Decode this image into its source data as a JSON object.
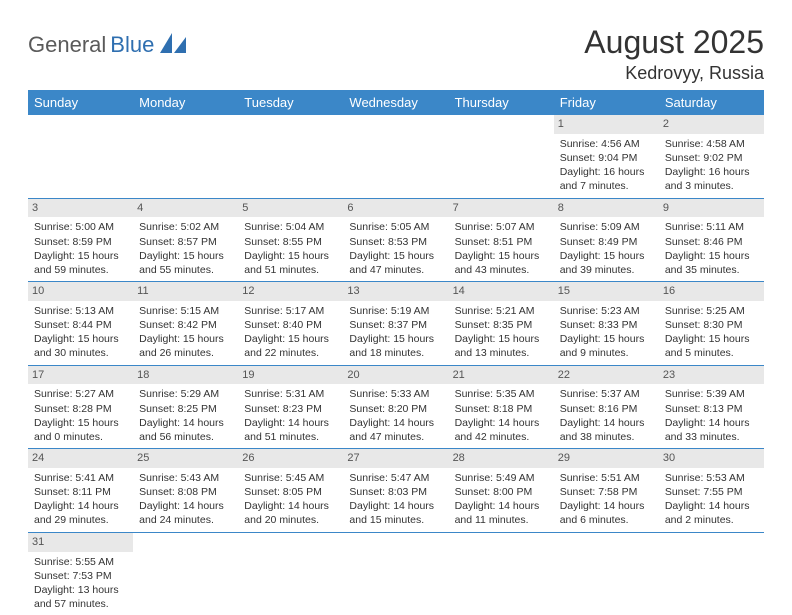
{
  "brand": {
    "part1": "General",
    "part2": "Blue"
  },
  "title": "August 2025",
  "location": "Kedrovyy, Russia",
  "colors": {
    "header_bg": "#3b87c8",
    "header_text": "#ffffff",
    "daynum_bg": "#e8e8e8",
    "row_border": "#3b87c8",
    "logo_accent": "#2f6fb0",
    "text": "#333333"
  },
  "day_headers": [
    "Sunday",
    "Monday",
    "Tuesday",
    "Wednesday",
    "Thursday",
    "Friday",
    "Saturday"
  ],
  "weeks": [
    [
      null,
      null,
      null,
      null,
      null,
      {
        "n": "1",
        "sr": "Sunrise: 4:56 AM",
        "ss": "Sunset: 9:04 PM",
        "dl": "Daylight: 16 hours and 7 minutes."
      },
      {
        "n": "2",
        "sr": "Sunrise: 4:58 AM",
        "ss": "Sunset: 9:02 PM",
        "dl": "Daylight: 16 hours and 3 minutes."
      }
    ],
    [
      {
        "n": "3",
        "sr": "Sunrise: 5:00 AM",
        "ss": "Sunset: 8:59 PM",
        "dl": "Daylight: 15 hours and 59 minutes."
      },
      {
        "n": "4",
        "sr": "Sunrise: 5:02 AM",
        "ss": "Sunset: 8:57 PM",
        "dl": "Daylight: 15 hours and 55 minutes."
      },
      {
        "n": "5",
        "sr": "Sunrise: 5:04 AM",
        "ss": "Sunset: 8:55 PM",
        "dl": "Daylight: 15 hours and 51 minutes."
      },
      {
        "n": "6",
        "sr": "Sunrise: 5:05 AM",
        "ss": "Sunset: 8:53 PM",
        "dl": "Daylight: 15 hours and 47 minutes."
      },
      {
        "n": "7",
        "sr": "Sunrise: 5:07 AM",
        "ss": "Sunset: 8:51 PM",
        "dl": "Daylight: 15 hours and 43 minutes."
      },
      {
        "n": "8",
        "sr": "Sunrise: 5:09 AM",
        "ss": "Sunset: 8:49 PM",
        "dl": "Daylight: 15 hours and 39 minutes."
      },
      {
        "n": "9",
        "sr": "Sunrise: 5:11 AM",
        "ss": "Sunset: 8:46 PM",
        "dl": "Daylight: 15 hours and 35 minutes."
      }
    ],
    [
      {
        "n": "10",
        "sr": "Sunrise: 5:13 AM",
        "ss": "Sunset: 8:44 PM",
        "dl": "Daylight: 15 hours and 30 minutes."
      },
      {
        "n": "11",
        "sr": "Sunrise: 5:15 AM",
        "ss": "Sunset: 8:42 PM",
        "dl": "Daylight: 15 hours and 26 minutes."
      },
      {
        "n": "12",
        "sr": "Sunrise: 5:17 AM",
        "ss": "Sunset: 8:40 PM",
        "dl": "Daylight: 15 hours and 22 minutes."
      },
      {
        "n": "13",
        "sr": "Sunrise: 5:19 AM",
        "ss": "Sunset: 8:37 PM",
        "dl": "Daylight: 15 hours and 18 minutes."
      },
      {
        "n": "14",
        "sr": "Sunrise: 5:21 AM",
        "ss": "Sunset: 8:35 PM",
        "dl": "Daylight: 15 hours and 13 minutes."
      },
      {
        "n": "15",
        "sr": "Sunrise: 5:23 AM",
        "ss": "Sunset: 8:33 PM",
        "dl": "Daylight: 15 hours and 9 minutes."
      },
      {
        "n": "16",
        "sr": "Sunrise: 5:25 AM",
        "ss": "Sunset: 8:30 PM",
        "dl": "Daylight: 15 hours and 5 minutes."
      }
    ],
    [
      {
        "n": "17",
        "sr": "Sunrise: 5:27 AM",
        "ss": "Sunset: 8:28 PM",
        "dl": "Daylight: 15 hours and 0 minutes."
      },
      {
        "n": "18",
        "sr": "Sunrise: 5:29 AM",
        "ss": "Sunset: 8:25 PM",
        "dl": "Daylight: 14 hours and 56 minutes."
      },
      {
        "n": "19",
        "sr": "Sunrise: 5:31 AM",
        "ss": "Sunset: 8:23 PM",
        "dl": "Daylight: 14 hours and 51 minutes."
      },
      {
        "n": "20",
        "sr": "Sunrise: 5:33 AM",
        "ss": "Sunset: 8:20 PM",
        "dl": "Daylight: 14 hours and 47 minutes."
      },
      {
        "n": "21",
        "sr": "Sunrise: 5:35 AM",
        "ss": "Sunset: 8:18 PM",
        "dl": "Daylight: 14 hours and 42 minutes."
      },
      {
        "n": "22",
        "sr": "Sunrise: 5:37 AM",
        "ss": "Sunset: 8:16 PM",
        "dl": "Daylight: 14 hours and 38 minutes."
      },
      {
        "n": "23",
        "sr": "Sunrise: 5:39 AM",
        "ss": "Sunset: 8:13 PM",
        "dl": "Daylight: 14 hours and 33 minutes."
      }
    ],
    [
      {
        "n": "24",
        "sr": "Sunrise: 5:41 AM",
        "ss": "Sunset: 8:11 PM",
        "dl": "Daylight: 14 hours and 29 minutes."
      },
      {
        "n": "25",
        "sr": "Sunrise: 5:43 AM",
        "ss": "Sunset: 8:08 PM",
        "dl": "Daylight: 14 hours and 24 minutes."
      },
      {
        "n": "26",
        "sr": "Sunrise: 5:45 AM",
        "ss": "Sunset: 8:05 PM",
        "dl": "Daylight: 14 hours and 20 minutes."
      },
      {
        "n": "27",
        "sr": "Sunrise: 5:47 AM",
        "ss": "Sunset: 8:03 PM",
        "dl": "Daylight: 14 hours and 15 minutes."
      },
      {
        "n": "28",
        "sr": "Sunrise: 5:49 AM",
        "ss": "Sunset: 8:00 PM",
        "dl": "Daylight: 14 hours and 11 minutes."
      },
      {
        "n": "29",
        "sr": "Sunrise: 5:51 AM",
        "ss": "Sunset: 7:58 PM",
        "dl": "Daylight: 14 hours and 6 minutes."
      },
      {
        "n": "30",
        "sr": "Sunrise: 5:53 AM",
        "ss": "Sunset: 7:55 PM",
        "dl": "Daylight: 14 hours and 2 minutes."
      }
    ],
    [
      {
        "n": "31",
        "sr": "Sunrise: 5:55 AM",
        "ss": "Sunset: 7:53 PM",
        "dl": "Daylight: 13 hours and 57 minutes."
      },
      null,
      null,
      null,
      null,
      null,
      null
    ]
  ]
}
